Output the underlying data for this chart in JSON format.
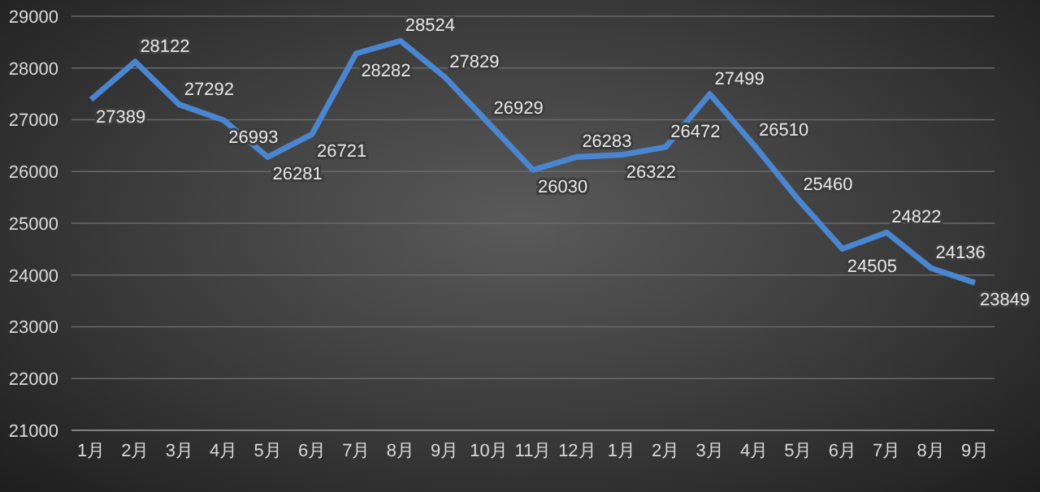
{
  "chart_data": {
    "type": "line",
    "categories": [
      "1月",
      "2月",
      "3月",
      "4月",
      "5月",
      "6月",
      "7月",
      "8月",
      "9月",
      "10月",
      "11月",
      "12月",
      "1月",
      "2月",
      "3月",
      "4月",
      "5月",
      "6月",
      "7月",
      "8月",
      "9月"
    ],
    "series": [
      {
        "color": "#4a86d0",
        "values": [
          27389,
          28122,
          27292,
          26993,
          26281,
          26721,
          28282,
          28524,
          27829,
          26929,
          26030,
          26283,
          26322,
          26472,
          27499,
          26510,
          25460,
          24505,
          24822,
          24136,
          23849
        ]
      }
    ],
    "ylim": [
      21000,
      29000
    ],
    "yticks": [
      21000,
      22000,
      23000,
      24000,
      25000,
      26000,
      27000,
      28000,
      29000
    ],
    "grid": "y",
    "data_labels": true,
    "marker": "none",
    "line_style": "solid",
    "legend": false
  }
}
